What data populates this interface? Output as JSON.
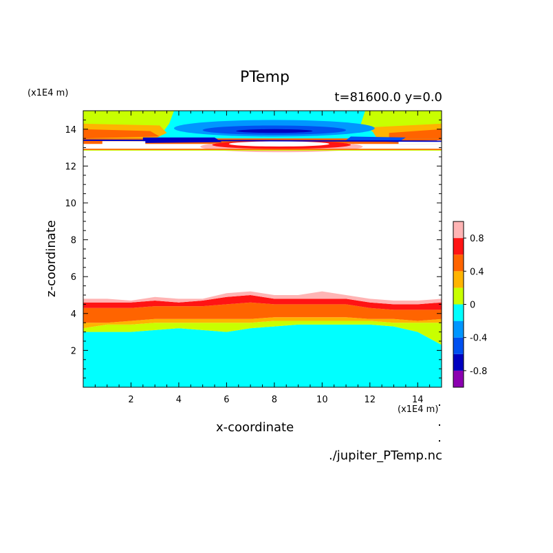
{
  "chart_data": {
    "type": "contour",
    "title": "PTemp",
    "subtitle": "t=81600.0 y=0.0",
    "xlabel": "x-coordinate",
    "ylabel": "z-coordinate",
    "x_unit": "(x1E4 m)",
    "y_unit": "(x1E4 m)",
    "source_file": "./jupiter_PTemp.nc",
    "xlim": [
      0,
      15
    ],
    "ylim": [
      0,
      15
    ],
    "x_ticks": [
      "2",
      "4",
      "6",
      "8",
      "10",
      "12",
      "14"
    ],
    "y_ticks": [
      "2",
      "4",
      "6",
      "8",
      "10",
      "12",
      "14"
    ],
    "colorbar": {
      "levels": [
        -1.0,
        -0.8,
        -0.6,
        -0.4,
        -0.2,
        0.0,
        0.2,
        0.4,
        0.6,
        0.8,
        1.0
      ],
      "colors": [
        "#8b00b0",
        "#0000c0",
        "#0050f0",
        "#0096ff",
        "#00ffff",
        "#c8ff00",
        "#ffb400",
        "#ff6400",
        "#ff1414",
        "#ffb4b4"
      ],
      "tick_labels": [
        "-0.8",
        "-0.4",
        "0",
        "0.4",
        "0.8"
      ]
    },
    "regions": [
      {
        "name": "lower-band-cyan",
        "value": "-0.2..0",
        "z_top": [
          3.0,
          3.0,
          3.0,
          3.2,
          3.1,
          3.0,
          3.2,
          3.4,
          3.4,
          3.4,
          3.4,
          3.3,
          3.2,
          2.5
        ]
      },
      {
        "name": "lower-band-red",
        "value": "0.4..0.8",
        "z_top": [
          4.5,
          4.5,
          4.6,
          4.6,
          4.7,
          4.9,
          5.0,
          4.7,
          4.8,
          4.8,
          4.7,
          4.6,
          4.5,
          4.6
        ]
      },
      {
        "name": "upper-band-min",
        "value": "-0.8",
        "x": [
          6,
          10
        ],
        "z": 13.7
      }
    ]
  }
}
